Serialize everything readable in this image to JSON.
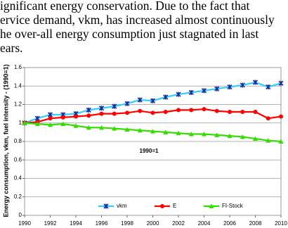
{
  "text": {
    "lines": [
      "ignificant energy conservation. Due to the fact that",
      "ervice demand, vkm, has increased almost continuously",
      "he over-all energy consumption just stagnated in last",
      "ears."
    ]
  },
  "chart_data": {
    "type": "line",
    "y_label": "Energy consumption, vkm, fuel intensity - (1990=1)",
    "annotation": "1990=1",
    "x": [
      1990,
      1991,
      1992,
      1993,
      1994,
      1995,
      1996,
      1997,
      1998,
      1999,
      2000,
      2001,
      2002,
      2003,
      2004,
      2005,
      2006,
      2007,
      2008,
      2009,
      2010
    ],
    "xlim": [
      1990,
      2010
    ],
    "xticks": [
      1990,
      1992,
      1994,
      1996,
      1998,
      2000,
      2002,
      2004,
      2006,
      2008,
      2010
    ],
    "ylim": [
      0,
      1.6
    ],
    "yticks": [
      0,
      0.2,
      0.4,
      0.6,
      0.8,
      1,
      1.2,
      1.4,
      1.6
    ],
    "grid": true,
    "legend": "bottom",
    "series": [
      {
        "name": "vkm",
        "color": "#33ccff",
        "marker": "x",
        "marker_color": "#1a2a9a",
        "values": [
          1.0,
          1.05,
          1.09,
          1.09,
          1.1,
          1.14,
          1.16,
          1.18,
          1.21,
          1.25,
          1.24,
          1.28,
          1.31,
          1.33,
          1.35,
          1.37,
          1.39,
          1.41,
          1.44,
          1.39,
          1.43
        ]
      },
      {
        "name": "E",
        "color": "#ff0000",
        "marker": "circle",
        "marker_color": "#ff0000",
        "values": [
          1.0,
          1.01,
          1.05,
          1.06,
          1.07,
          1.08,
          1.1,
          1.1,
          1.11,
          1.13,
          1.11,
          1.12,
          1.14,
          1.14,
          1.15,
          1.13,
          1.12,
          1.12,
          1.12,
          1.05,
          1.07
        ]
      },
      {
        "name": "FI-Stock",
        "color": "#33dd00",
        "marker": "triangle",
        "marker_color": "#33dd00",
        "values": [
          1.0,
          0.99,
          0.98,
          0.99,
          0.97,
          0.95,
          0.95,
          0.94,
          0.93,
          0.92,
          0.91,
          0.9,
          0.89,
          0.88,
          0.88,
          0.87,
          0.86,
          0.85,
          0.83,
          0.81,
          0.8
        ]
      }
    ]
  }
}
